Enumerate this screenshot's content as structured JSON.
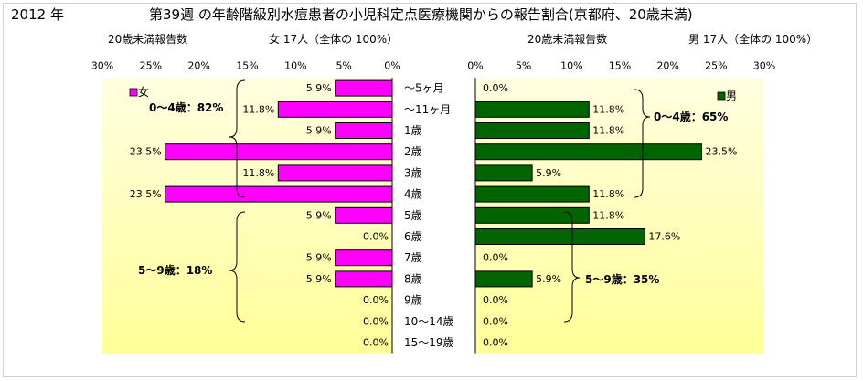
{
  "header": {
    "year": "2012 年",
    "title": "第39週 の年齢階級別水痘患者の小児科定点医療機関からの報告割合(京都府、20歳未満)"
  },
  "colors": {
    "female_bar": "#ff00ff",
    "male_bar": "#006400",
    "plot_bg_top": "#fffee0",
    "plot_bg_bottom": "#ffff99"
  },
  "chart_data": [
    {
      "type": "bar",
      "orientation": "horizontal",
      "direction": "right-to-left",
      "subtitle_left": "20歳未満報告数",
      "subtitle_right": "女 17人（全体の 100%）",
      "legend": "女",
      "legend_position": "top-left",
      "xlim": [
        0,
        30
      ],
      "x_ticks": [
        "30%",
        "25%",
        "20%",
        "15%",
        "10%",
        "5%",
        "0%"
      ],
      "categories": [
        "～5ヶ月",
        "～11ヶ月",
        "1歳",
        "2歳",
        "3歳",
        "4歳",
        "5歳",
        "6歳",
        "7歳",
        "8歳",
        "9歳",
        "10～14歳",
        "15～19歳"
      ],
      "series": [
        {
          "name": "女",
          "values": [
            5.9,
            11.8,
            5.9,
            23.5,
            11.8,
            23.5,
            5.9,
            0.0,
            5.9,
            5.9,
            0.0,
            0.0,
            0.0
          ]
        }
      ],
      "data_labels": [
        "5.9%",
        "11.8%",
        "5.9%",
        "23.5%",
        "11.8%",
        "23.5%",
        "5.9%",
        "0.0%",
        "5.9%",
        "5.9%",
        "0.0%",
        "0.0%",
        "0.0%"
      ],
      "annotations": [
        "0～4歳：82%",
        "5～9歳：18%"
      ]
    },
    {
      "type": "bar",
      "orientation": "horizontal",
      "direction": "left-to-right",
      "subtitle_left": "20歳未満報告数",
      "subtitle_right": "男 17人（全体の 100%）",
      "legend": "男",
      "legend_position": "top-right",
      "xlim": [
        0,
        30
      ],
      "x_ticks": [
        "0%",
        "5%",
        "10%",
        "15%",
        "20%",
        "25%",
        "30%"
      ],
      "categories": [
        "～5ヶ月",
        "～11ヶ月",
        "1歳",
        "2歳",
        "3歳",
        "4歳",
        "5歳",
        "6歳",
        "7歳",
        "8歳",
        "9歳",
        "10～14歳",
        "15～19歳"
      ],
      "series": [
        {
          "name": "男",
          "values": [
            0.0,
            11.8,
            11.8,
            23.5,
            5.9,
            11.8,
            11.8,
            17.6,
            0.0,
            5.9,
            0.0,
            0.0,
            0.0
          ]
        }
      ],
      "data_labels": [
        "0.0%",
        "11.8%",
        "11.8%",
        "23.5%",
        "5.9%",
        "11.8%",
        "11.8%",
        "17.6%",
        "0.0%",
        "5.9%",
        "0.0%",
        "0.0%",
        "0.0%"
      ],
      "annotations": [
        "0～4歳：65%",
        "5～9歳：35%"
      ]
    }
  ]
}
